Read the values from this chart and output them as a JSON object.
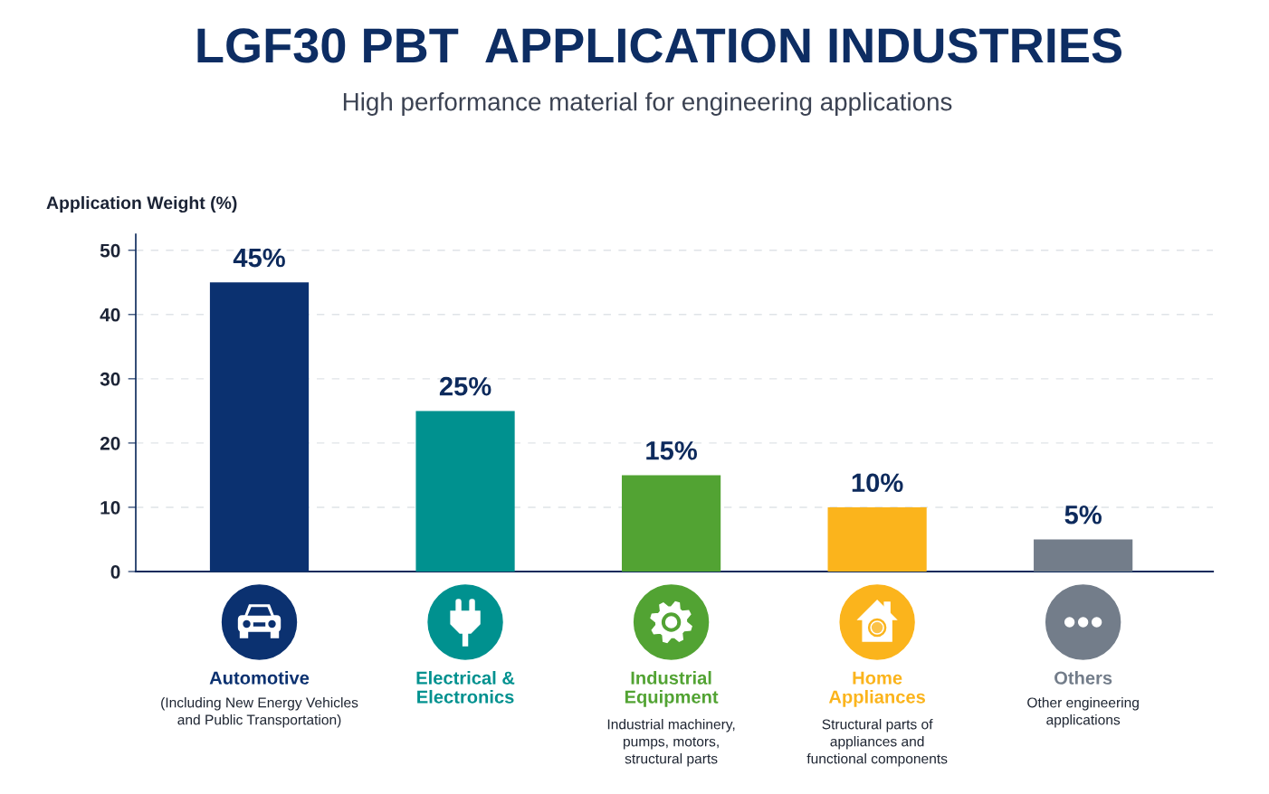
{
  "chart_data": {
    "type": "bar",
    "title": "LGF30 PBT  APPLICATION INDUSTRIES",
    "subtitle": "High performance material for engineering applications",
    "ylabel": "Application Weight (%)",
    "categories": [
      "Automotive",
      "Electrical &\nElectronics",
      "Industrial\nEquipment",
      "Home\nAppliances",
      "Others"
    ],
    "values": [
      45,
      25,
      15,
      10,
      5
    ],
    "value_labels": [
      "45%",
      "25%",
      "15%",
      "10%",
      "5%"
    ],
    "colors": [
      "#0b3170",
      "#00918f",
      "#52a333",
      "#fbb41c",
      "#737d8a"
    ],
    "ylim": [
      0,
      52.5
    ],
    "yticks": [
      0,
      10,
      20,
      30,
      40,
      50
    ],
    "grid": "y",
    "annotations": [
      "(Including New Energy Vehicles\nand Public Transportation)",
      "Industrial machinery,\npumps, motors,\nstructural parts",
      "Structural parts of\nappliances and\nfunctional components",
      "Other engineering\napplications"
    ]
  }
}
